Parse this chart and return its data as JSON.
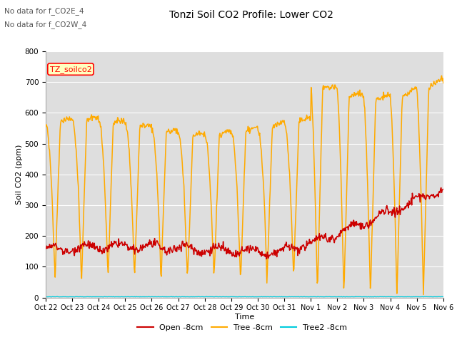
{
  "title": "Tonzi Soil CO2 Profile: Lower CO2",
  "annotations": [
    "No data for f_CO2E_4",
    "No data for f_CO2W_4"
  ],
  "legend_label": "TZ_soilco2",
  "xlabel": "Time",
  "ylabel": "Soil CO2 (ppm)",
  "ylim": [
    0,
    800
  ],
  "yticks": [
    0,
    100,
    200,
    300,
    400,
    500,
    600,
    700,
    800
  ],
  "xtick_labels": [
    "Oct 22",
    "Oct 23",
    "Oct 24",
    "Oct 25",
    "Oct 26",
    "Oct 27",
    "Oct 28",
    "Oct 29",
    "Oct 30",
    "Oct 31",
    "Nov 1",
    "Nov 2",
    "Nov 3",
    "Nov 4",
    "Nov 5",
    "Nov 6"
  ],
  "open_color": "#cc0000",
  "tree_color": "#ffaa00",
  "tree2_color": "#00ccdd",
  "bg_color": "#dedede",
  "legend_entries": [
    "Open -8cm",
    "Tree -8cm",
    "Tree2 -8cm"
  ],
  "title_fontsize": 10,
  "label_fontsize": 8,
  "tick_fontsize": 7.5
}
